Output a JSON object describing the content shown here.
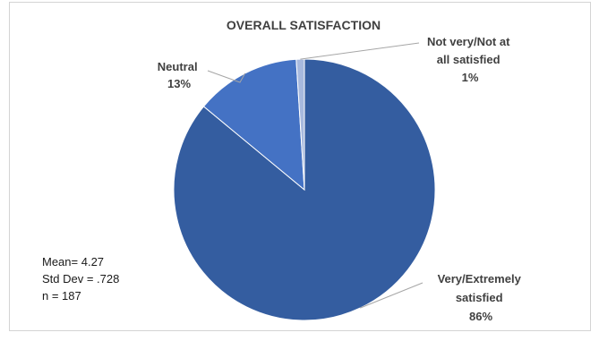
{
  "chart_data": {
    "type": "pie",
    "title": "OVERALL SATISFACTION",
    "slices": [
      {
        "label_lines": [
          "Very/Extremely",
          "satisfied"
        ],
        "pct_label": "86%",
        "value": 86,
        "color": "#345da0"
      },
      {
        "label_lines": [
          "Neutral"
        ],
        "pct_label": "13%",
        "value": 13,
        "color": "#4472c4"
      },
      {
        "label_lines": [
          "Not very/Not at",
          "all satisfied"
        ],
        "pct_label": "1%",
        "value": 1,
        "color": "#a7b9de"
      }
    ],
    "stats": [
      "Mean= 4.27",
      "Std Dev = .728",
      "n = 187"
    ]
  }
}
